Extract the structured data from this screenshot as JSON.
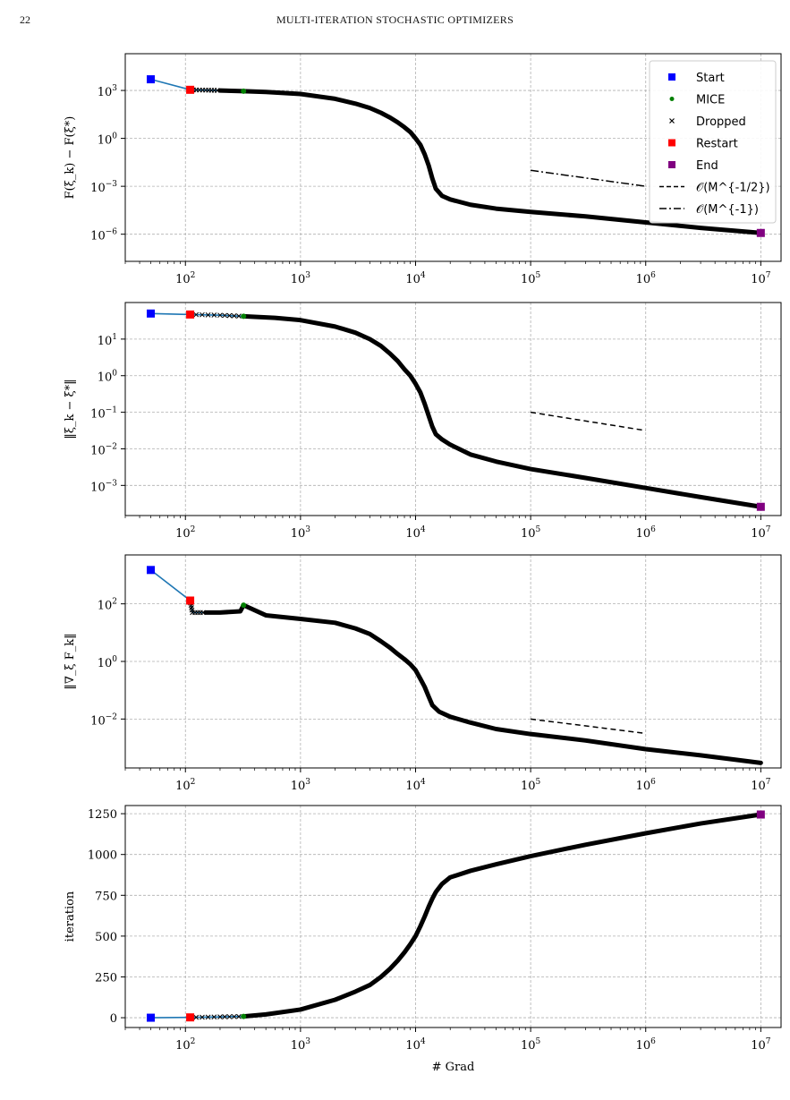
{
  "page": {
    "number": "22",
    "running_head": "MULTI-ITERATION STOCHASTIC OPTIMIZERS"
  },
  "colors": {
    "start": "#0000ff",
    "mice": "#008000",
    "dropped": "#000000",
    "restart": "#ff0000",
    "end": "#800080",
    "line": "#1f77b4",
    "grid": "#b0b0b0"
  },
  "legend": {
    "entries": [
      {
        "label": "Start",
        "marker": "square",
        "color": "#0000ff"
      },
      {
        "label": "MICE",
        "marker": "dot",
        "color": "#008000"
      },
      {
        "label": "Dropped",
        "marker": "x",
        "color": "#000000"
      },
      {
        "label": "Restart",
        "marker": "square",
        "color": "#ff0000"
      },
      {
        "label": "End",
        "marker": "square",
        "color": "#800080"
      },
      {
        "label": "𝒪(M^{-1/2})",
        "marker": "dashed"
      },
      {
        "label": "𝒪(M^{-1})",
        "marker": "dashdot"
      }
    ]
  },
  "chart_data": [
    {
      "type": "line",
      "ylabel": "F(ξ_k) − F(ξ*)",
      "xlabel": "",
      "xscale": "log",
      "yscale": "log",
      "xlim": [
        30,
        15000000
      ],
      "ylim": [
        2e-08,
        200000
      ],
      "x_ticks": [
        "10^2",
        "10^3",
        "10^4",
        "10^5",
        "10^6",
        "10^7"
      ],
      "y_ticks": [
        "10^3",
        "10^0",
        "10^-3",
        "10^-6"
      ],
      "grid": true,
      "legend": "top-right",
      "series": [
        {
          "name": "",
          "style": "blue-line",
          "x": [
            50,
            110,
            150,
            200,
            320,
            500,
            1000,
            2000,
            3000,
            4000,
            5000,
            6000,
            7000,
            8000,
            9000,
            10000,
            11000,
            12000,
            13000,
            14000,
            15000,
            17000,
            20000,
            30000,
            50000,
            100000,
            300000,
            1000000,
            3000000,
            10000000
          ],
          "y": [
            5000,
            1100,
            1050,
            1000,
            900,
            800,
            600,
            300,
            150,
            80,
            40,
            20,
            10,
            5,
            2.5,
            1,
            0.4,
            0.1,
            0.02,
            0.003,
            0.0007,
            0.00025,
            0.00015,
            7e-05,
            4e-05,
            2.5e-05,
            1.3e-05,
            5.5e-06,
            2.5e-06,
            1.2e-06
          ]
        },
        {
          "name": "Start",
          "marker": "square",
          "x": [
            50
          ],
          "y": [
            5000
          ]
        },
        {
          "name": "Restart",
          "marker": "square",
          "x": [
            110
          ],
          "y": [
            1100
          ]
        },
        {
          "name": "MICE",
          "marker": "dot",
          "x": [
            320
          ],
          "y": [
            900
          ]
        },
        {
          "name": "End",
          "marker": "square",
          "x": [
            10000000
          ],
          "y": [
            1.2e-06
          ]
        },
        {
          "name": "𝒪(M^{-1})",
          "style": "dashdot",
          "x": [
            100000,
            1000000
          ],
          "y": [
            0.01,
            0.001
          ]
        }
      ]
    },
    {
      "type": "line",
      "ylabel": "‖ξ_k − ξ*‖",
      "xlabel": "",
      "xscale": "log",
      "yscale": "log",
      "xlim": [
        30,
        15000000
      ],
      "ylim": [
        0.00015,
        100
      ],
      "x_ticks": [
        "10^2",
        "10^3",
        "10^4",
        "10^5",
        "10^6",
        "10^7"
      ],
      "y_ticks": [
        "10^1",
        "10^0",
        "10^-1",
        "10^-2",
        "10^-3"
      ],
      "grid": true,
      "series": [
        {
          "name": "",
          "style": "blue-line",
          "x": [
            50,
            110,
            200,
            320,
            600,
            1000,
            2000,
            3000,
            4000,
            5000,
            6000,
            7000,
            8000,
            9000,
            10000,
            11000,
            12000,
            13000,
            14000,
            15000,
            17000,
            20000,
            30000,
            50000,
            100000,
            300000,
            1000000,
            3000000,
            10000000
          ],
          "y": [
            50,
            47,
            45,
            42,
            38,
            33,
            22,
            15,
            10,
            6.5,
            4,
            2.5,
            1.5,
            1,
            0.6,
            0.35,
            0.17,
            0.08,
            0.04,
            0.025,
            0.018,
            0.013,
            0.007,
            0.0045,
            0.0028,
            0.0016,
            0.00085,
            0.00048,
            0.00026
          ]
        },
        {
          "name": "Start",
          "marker": "square",
          "x": [
            50
          ],
          "y": [
            50
          ]
        },
        {
          "name": "Restart",
          "marker": "square",
          "x": [
            110
          ],
          "y": [
            47
          ]
        },
        {
          "name": "MICE",
          "marker": "dot",
          "x": [
            320
          ],
          "y": [
            42
          ]
        },
        {
          "name": "End",
          "marker": "square",
          "x": [
            10000000
          ],
          "y": [
            0.00026
          ]
        },
        {
          "name": "𝒪(M^{-1/2})",
          "style": "dashed",
          "x": [
            100000,
            1000000
          ],
          "y": [
            0.1,
            0.0316
          ]
        }
      ]
    },
    {
      "type": "line",
      "ylabel": "‖∇_ξ F_k‖",
      "xlabel": "",
      "xscale": "log",
      "yscale": "log",
      "xlim": [
        30,
        15000000
      ],
      "ylim": [
        0.0002,
        5000
      ],
      "x_ticks": [
        "10^2",
        "10^3",
        "10^4",
        "10^5",
        "10^6",
        "10^7"
      ],
      "y_ticks": [
        "10^2",
        "10^0",
        "10^-2"
      ],
      "grid": true,
      "series": [
        {
          "name": "",
          "style": "blue-line",
          "x": [
            50,
            110,
            115,
            150,
            200,
            300,
            320,
            500,
            1000,
            2000,
            3000,
            4000,
            5000,
            6000,
            7000,
            8000,
            9000,
            10000,
            11000,
            12000,
            13000,
            14000,
            16000,
            20000,
            30000,
            50000,
            100000,
            300000,
            1000000,
            3000000,
            10000000
          ],
          "y": [
            1500,
            130,
            50,
            50,
            50,
            55,
            90,
            40,
            30,
            22,
            14,
            9,
            5,
            3,
            1.8,
            1.2,
            0.8,
            0.5,
            0.25,
            0.13,
            0.06,
            0.03,
            0.018,
            0.012,
            0.0075,
            0.0045,
            0.003,
            0.0018,
            0.0009,
            0.00055,
            0.0003
          ]
        },
        {
          "name": "Start",
          "marker": "square",
          "x": [
            50
          ],
          "y": [
            1500
          ]
        },
        {
          "name": "Restart",
          "marker": "square",
          "x": [
            110
          ],
          "y": [
            130
          ]
        },
        {
          "name": "MICE",
          "marker": "dot",
          "x": [
            320
          ],
          "y": [
            90
          ]
        },
        {
          "name": "𝒪(M^{-1/2})",
          "style": "dashed",
          "x": [
            100000,
            1000000
          ],
          "y": [
            0.01,
            0.00316
          ]
        }
      ]
    },
    {
      "type": "line",
      "ylabel": "iteration",
      "xlabel": "# Grad",
      "xscale": "log",
      "yscale": "linear",
      "xlim": [
        30,
        15000000
      ],
      "ylim": [
        -60,
        1300
      ],
      "x_ticks": [
        "10^2",
        "10^3",
        "10^4",
        "10^5",
        "10^6",
        "10^7"
      ],
      "y_ticks": [
        "0",
        "250",
        "500",
        "750",
        "1000",
        "1250"
      ],
      "grid": true,
      "series": [
        {
          "name": "",
          "style": "blue-line",
          "x": [
            50,
            110,
            200,
            320,
            500,
            1000,
            2000,
            3000,
            4000,
            5000,
            6000,
            7000,
            8000,
            9000,
            10000,
            11000,
            12000,
            13000,
            14000,
            15000,
            17000,
            20000,
            30000,
            50000,
            100000,
            300000,
            1000000,
            3000000,
            10000000
          ],
          "y": [
            0,
            2,
            5,
            8,
            20,
            50,
            110,
            160,
            200,
            250,
            300,
            350,
            400,
            450,
            500,
            560,
            620,
            680,
            730,
            770,
            820,
            860,
            900,
            940,
            990,
            1060,
            1130,
            1190,
            1245
          ]
        },
        {
          "name": "Start",
          "marker": "square",
          "x": [
            50
          ],
          "y": [
            0
          ]
        },
        {
          "name": "Restart",
          "marker": "square",
          "x": [
            110
          ],
          "y": [
            2
          ]
        },
        {
          "name": "MICE",
          "marker": "dot",
          "x": [
            320
          ],
          "y": [
            8
          ]
        },
        {
          "name": "End",
          "marker": "square",
          "x": [
            10000000
          ],
          "y": [
            1245
          ]
        }
      ]
    }
  ]
}
